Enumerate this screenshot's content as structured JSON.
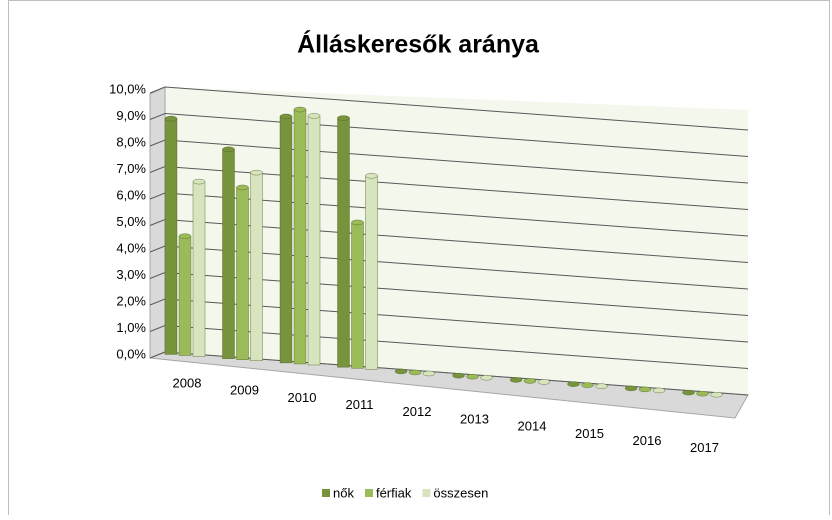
{
  "chart_data": {
    "type": "bar3d",
    "title": "Álláskeresők aránya",
    "categories": [
      "2008",
      "2009",
      "2010",
      "2011",
      "2012",
      "2013",
      "2014",
      "2015",
      "2016",
      "2017"
    ],
    "series": [
      {
        "name": "nők",
        "color": "#77933c",
        "values": [
          8.9,
          7.9,
          9.3,
          9.4,
          0,
          0,
          0,
          0,
          0,
          0
        ]
      },
      {
        "name": "férfiak",
        "color": "#9bbb59",
        "values": [
          4.5,
          6.5,
          9.6,
          5.5,
          0,
          0,
          0,
          0,
          0,
          0
        ]
      },
      {
        "name": "összesen",
        "color": "#d7e4bd",
        "values": [
          6.6,
          7.1,
          9.4,
          7.3,
          0,
          0,
          0,
          0,
          0,
          0
        ]
      }
    ],
    "ylim": [
      0,
      10
    ],
    "yticks": [
      {
        "value": 0,
        "label": "0,0%"
      },
      {
        "value": 1,
        "label": "1,0%"
      },
      {
        "value": 2,
        "label": "2,0%"
      },
      {
        "value": 3,
        "label": "3,0%"
      },
      {
        "value": 4,
        "label": "4,0%"
      },
      {
        "value": 5,
        "label": "5,0%"
      },
      {
        "value": 6,
        "label": "6,0%"
      },
      {
        "value": 7,
        "label": "7,0%"
      },
      {
        "value": 8,
        "label": "8,0%"
      },
      {
        "value": 9,
        "label": "9,0%"
      },
      {
        "value": 10,
        "label": "10,0%"
      }
    ],
    "grid": true,
    "legend": "bottom"
  }
}
